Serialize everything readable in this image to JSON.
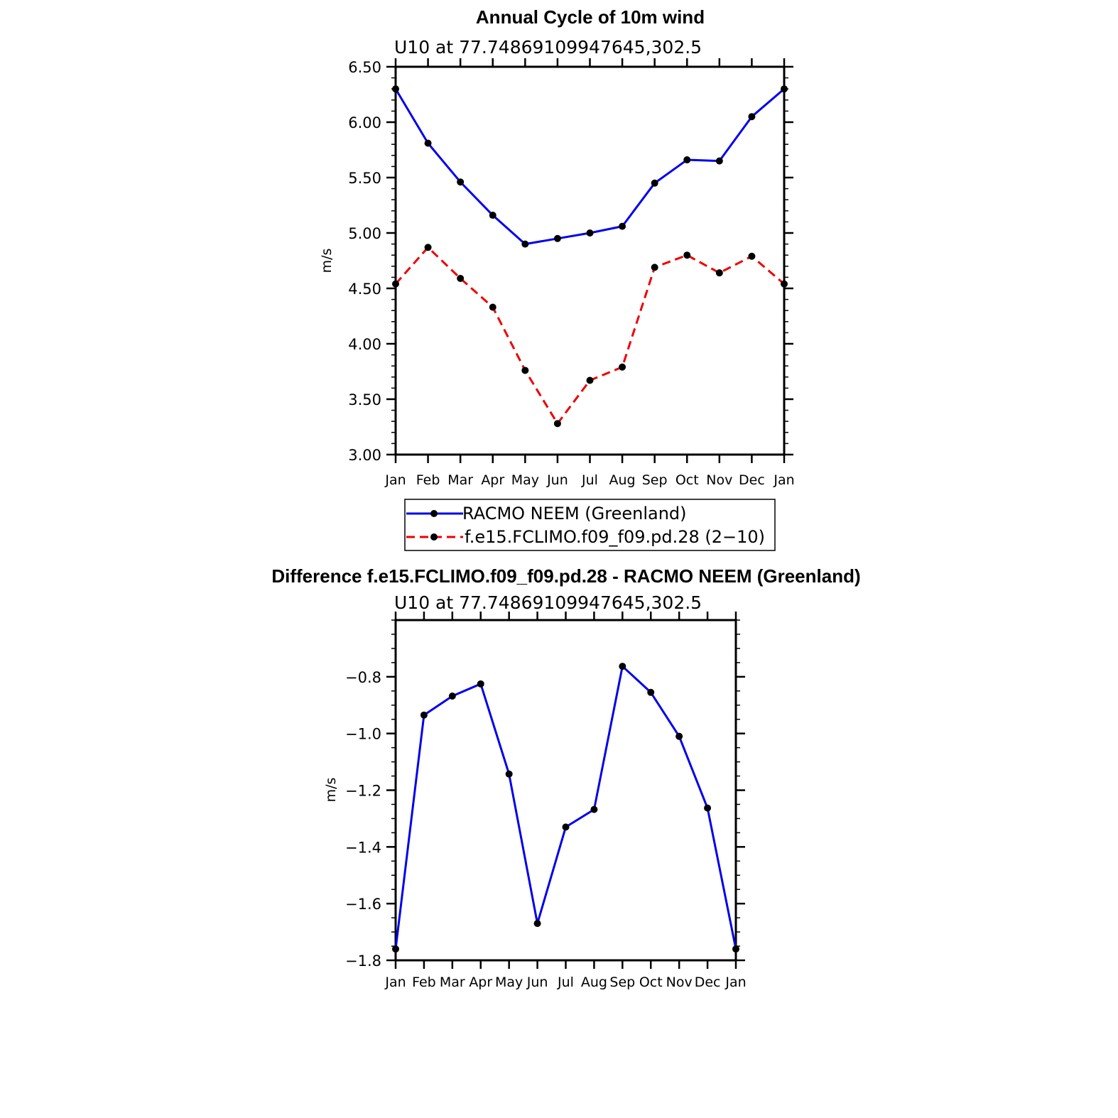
{
  "chart_data": [
    {
      "type": "line",
      "title": "Annual Cycle of 10m wind",
      "subtitle": "U10  at  77.74869109947645,302.5",
      "ylabel": "m/s",
      "xlabel": "",
      "categories": [
        "Jan",
        "Feb",
        "Mar",
        "Apr",
        "May",
        "Jun",
        "Jul",
        "Aug",
        "Sep",
        "Oct",
        "Nov",
        "Dec",
        "Jan"
      ],
      "ylim": [
        3.0,
        6.5
      ],
      "yticks": [
        "3.00",
        "3.50",
        "4.00",
        "4.50",
        "5.00",
        "5.50",
        "6.00",
        "6.50"
      ],
      "series": [
        {
          "name": "RACMO NEEM (Greenland)",
          "color": "#0000ee",
          "dash": "solid",
          "values": [
            6.3,
            5.81,
            5.46,
            5.16,
            4.9,
            4.95,
            5.0,
            5.06,
            5.45,
            5.66,
            5.65,
            6.05,
            6.3
          ]
        },
        {
          "name": "f.e15.FCLIMO.f09_f09.pd.28 (2−10)",
          "color": "#ee0000",
          "dash": "dashed",
          "values": [
            4.54,
            4.87,
            4.59,
            4.33,
            3.76,
            3.28,
            3.67,
            3.79,
            4.69,
            4.8,
            4.64,
            4.79,
            4.54
          ]
        }
      ],
      "legend": "bottom"
    },
    {
      "type": "line",
      "title": "Difference f.e15.FCLIMO.f09_f09.pd.28 - RACMO NEEM (Greenland)",
      "subtitle": "U10  at  77.74869109947645,302.5",
      "ylabel": "m/s",
      "xlabel": "",
      "categories": [
        "Jan",
        "Feb",
        "Mar",
        "Apr",
        "May",
        "Jun",
        "Jul",
        "Aug",
        "Sep",
        "Oct",
        "Nov",
        "Dec",
        "Jan"
      ],
      "ylim": [
        -1.8,
        -0.6
      ],
      "yticks": [
        "−1.8",
        "−1.6",
        "−1.4",
        "−1.2",
        "−1.0",
        "−0.8"
      ],
      "series": [
        {
          "name": "Difference",
          "color": "#0000ee",
          "dash": "solid",
          "values": [
            -1.76,
            -0.935,
            -0.868,
            -0.825,
            -1.143,
            -1.67,
            -1.33,
            -1.268,
            -0.763,
            -0.855,
            -1.01,
            -1.263,
            -1.76
          ]
        }
      ]
    }
  ]
}
